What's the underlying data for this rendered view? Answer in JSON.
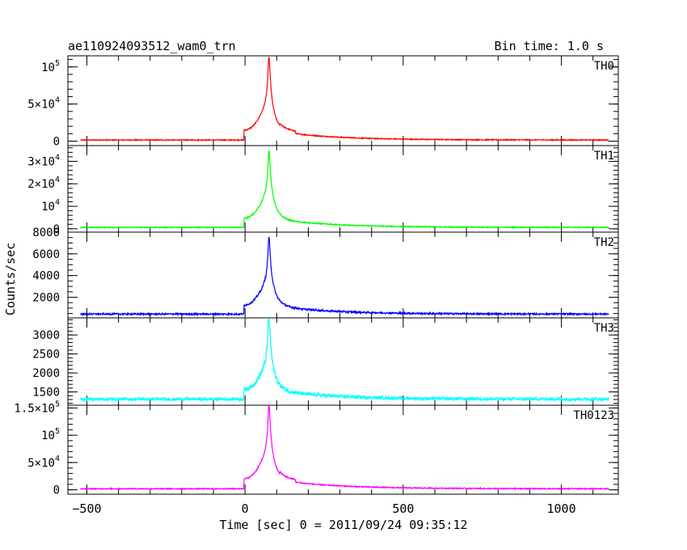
{
  "header": {
    "title": "ae110924093512_wam0_trn",
    "bin_time": "Bin time: 1.0 s"
  },
  "chart_data": {
    "type": "line",
    "xlabel": "Time [sec] 0 = 2011/09/24 09:35:12",
    "ylabel": "Counts/sec",
    "xlim": [
      -560,
      1180
    ],
    "x_ticks": [
      {
        "v": -500,
        "label": "−500"
      },
      {
        "v": 0,
        "label": "0"
      },
      {
        "v": 500,
        "label": "500"
      },
      {
        "v": 1000,
        "label": "1000"
      }
    ],
    "x_minor_step": 100,
    "panels": [
      {
        "name": "TH0",
        "color": "#ff0000",
        "ylim": [
          -6000,
          115000
        ],
        "baseline": 1500,
        "peak": 112000,
        "noise": 600,
        "ticks": [
          {
            "v": 0,
            "base": "0",
            "exp": ""
          },
          {
            "v": 50000,
            "base": "5×10",
            "exp": "4"
          },
          {
            "v": 100000,
            "base": "10",
            "exp": "5"
          }
        ],
        "minor_step": 10000
      },
      {
        "name": "TH1",
        "color": "#00ff00",
        "ylim": [
          -1500,
          37000
        ],
        "baseline": 600,
        "peak": 34500,
        "noise": 200,
        "ticks": [
          {
            "v": 0,
            "base": "0",
            "exp": ""
          },
          {
            "v": 10000,
            "base": "10",
            "exp": "4"
          },
          {
            "v": 20000,
            "base": "2×10",
            "exp": "4"
          },
          {
            "v": 30000,
            "base": "3×10",
            "exp": "4"
          }
        ],
        "minor_step": 2000
      },
      {
        "name": "TH2",
        "color": "#0000ff",
        "ylim": [
          100,
          8000
        ],
        "baseline": 450,
        "peak": 7400,
        "noise": 70,
        "ticks": [
          {
            "v": 2000,
            "base": "2000",
            "exp": ""
          },
          {
            "v": 4000,
            "base": "4000",
            "exp": ""
          },
          {
            "v": 6000,
            "base": "6000",
            "exp": ""
          },
          {
            "v": 8000,
            "base": "8000",
            "exp": ""
          }
        ],
        "minor_step": 500
      },
      {
        "name": "TH3",
        "color": "#00ffff",
        "ylim": [
          1150,
          3450
        ],
        "baseline": 1310,
        "peak": 3450,
        "noise": 40,
        "ticks": [
          {
            "v": 1500,
            "base": "1500",
            "exp": ""
          },
          {
            "v": 2000,
            "base": "2000",
            "exp": ""
          },
          {
            "v": 2500,
            "base": "2500",
            "exp": ""
          },
          {
            "v": 3000,
            "base": "3000",
            "exp": ""
          }
        ],
        "minor_step": 100
      },
      {
        "name": "TH0123",
        "color": "#ff00ff",
        "ylim": [
          -8000,
          155000
        ],
        "baseline": 2000,
        "peak": 155000,
        "noise": 900,
        "ticks": [
          {
            "v": 0,
            "base": "0",
            "exp": ""
          },
          {
            "v": 50000,
            "base": "5×10",
            "exp": "4"
          },
          {
            "v": 100000,
            "base": "10",
            "exp": "5"
          },
          {
            "v": 150000,
            "base": "1.5×10",
            "exp": "5"
          }
        ],
        "minor_step": 10000
      }
    ],
    "series_x_range": [
      -520,
      1150
    ],
    "burst_peak_time": 75,
    "grid": false,
    "legend": "none"
  }
}
